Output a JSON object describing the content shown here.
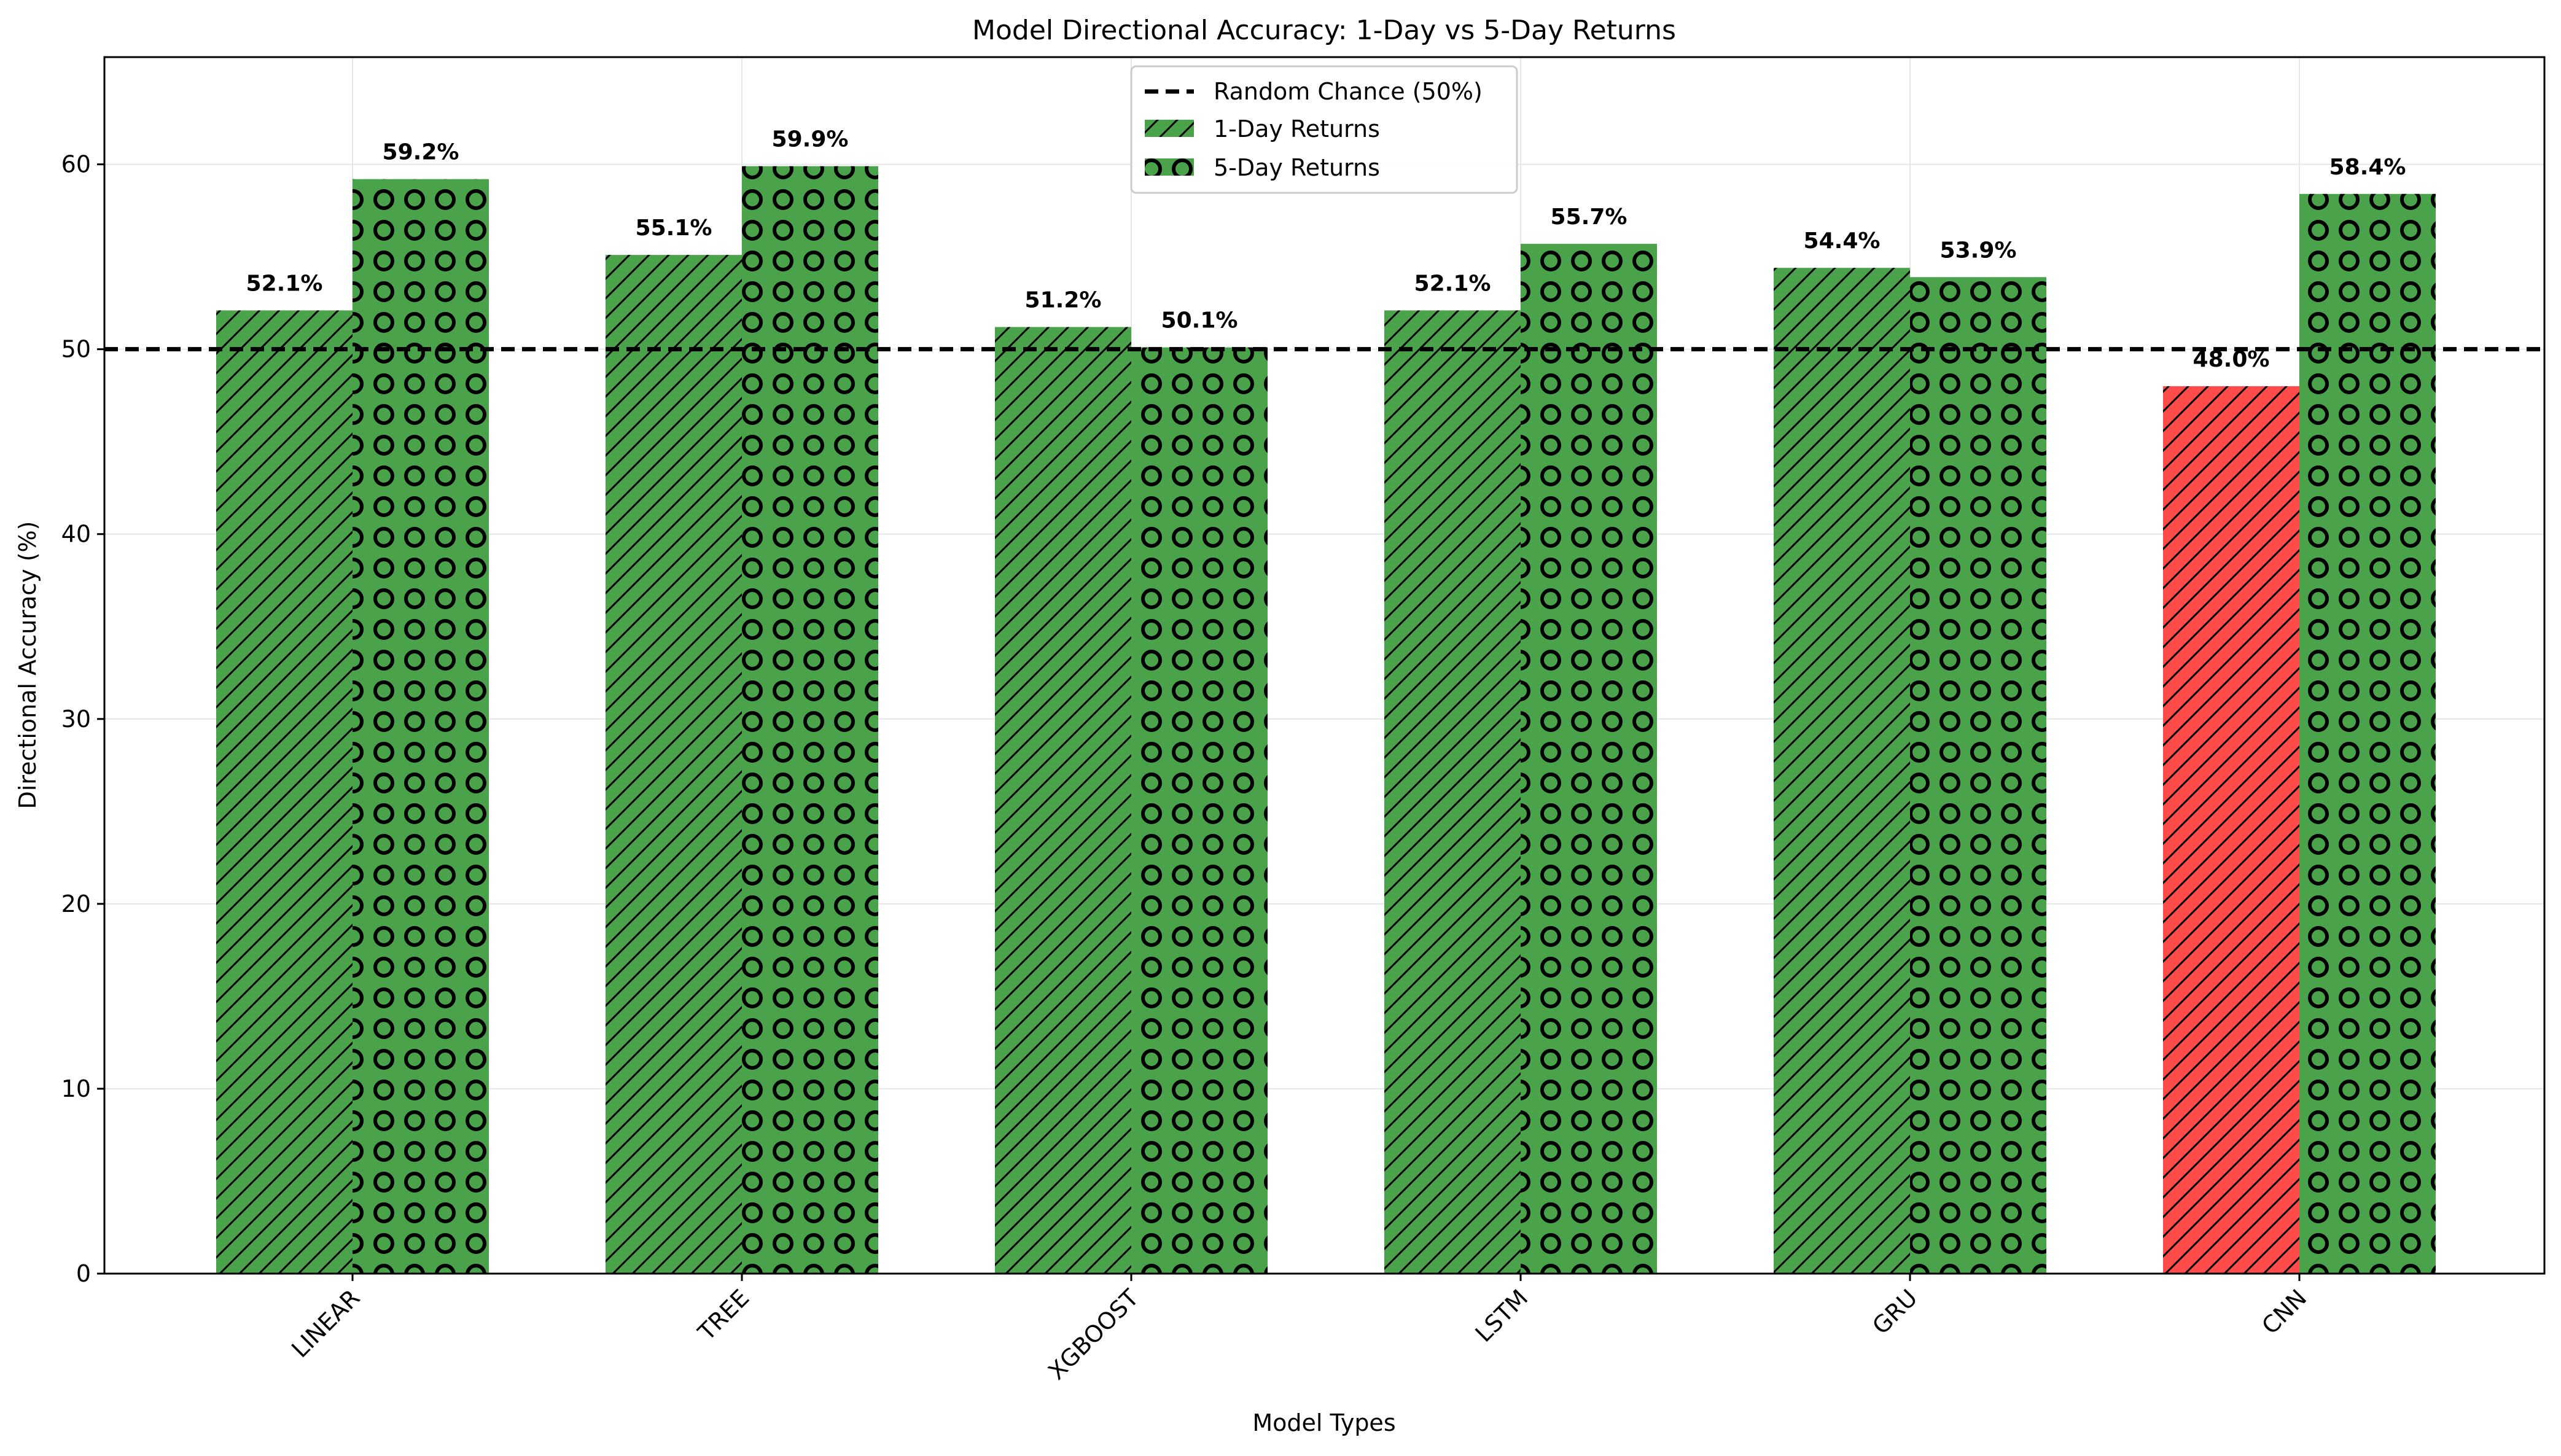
{
  "chart_data": {
    "type": "bar",
    "title": "Model Directional Accuracy: 1-Day vs 5-Day Returns",
    "xlabel": "Model Types",
    "ylabel": "Directional Accuracy (%)",
    "categories": [
      "LINEAR",
      "TREE",
      "XGBOOST",
      "LSTM",
      "GRU",
      "CNN"
    ],
    "series": [
      {
        "name": "1-Day Returns",
        "values": [
          52.1,
          55.1,
          51.2,
          52.1,
          54.4,
          48.0
        ],
        "labels": [
          "52.1%",
          "55.1%",
          "51.2%",
          "52.1%",
          "54.4%",
          "48.0%"
        ],
        "color": "#4aa34a",
        "below_threshold_color": "#ff4a4a",
        "hatch": "diagonal"
      },
      {
        "name": "5-Day Returns",
        "values": [
          59.2,
          59.9,
          50.1,
          55.7,
          53.9,
          58.4
        ],
        "labels": [
          "59.2%",
          "59.9%",
          "50.1%",
          "55.7%",
          "53.9%",
          "58.4%"
        ],
        "color": "#4aa34a",
        "hatch": "circles"
      }
    ],
    "reference_line": {
      "name": "Random Chance (50%)",
      "value": 50,
      "style": "dashed",
      "color": "#000000"
    },
    "ylim": [
      0,
      65.8
    ],
    "yticks": [
      "0",
      "10",
      "20",
      "30",
      "40",
      "50",
      "60"
    ],
    "grid": true,
    "legend_position": "top-center"
  }
}
